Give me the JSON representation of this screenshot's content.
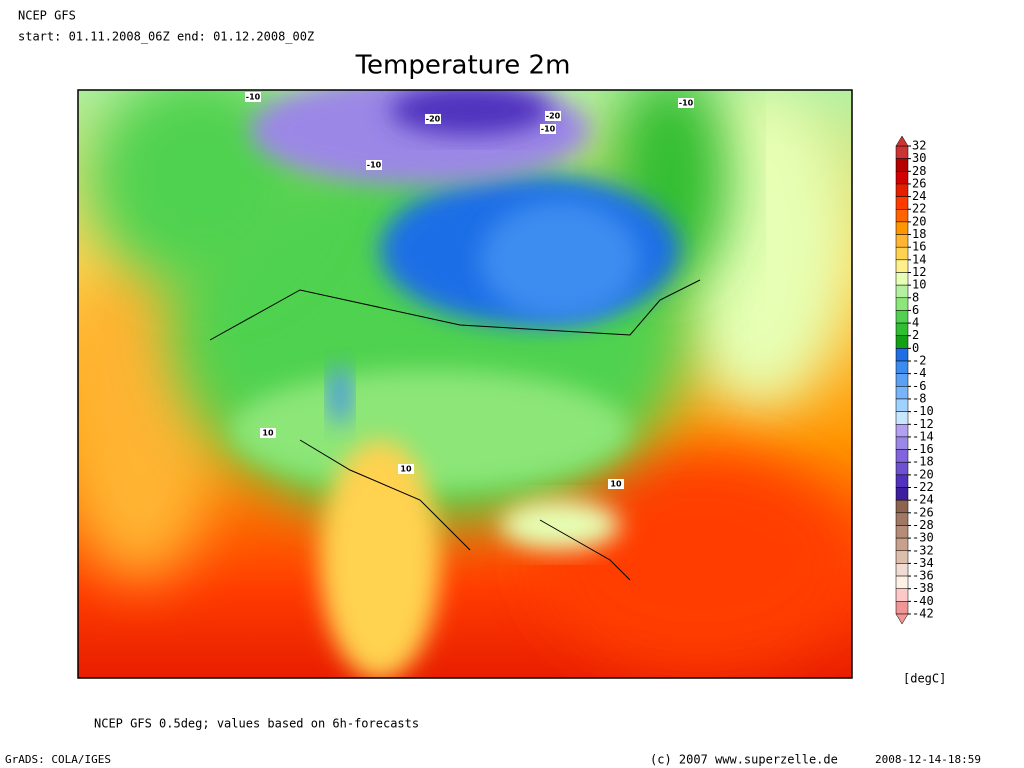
{
  "header": {
    "model": "NCEP GFS",
    "period": "start: 01.11.2008_06Z end: 01.12.2008_00Z"
  },
  "title": "Temperature 2m",
  "contour_labels": [
    "-10",
    "-20",
    "-20",
    "-10",
    "-10",
    "-10",
    "10",
    "10",
    "10"
  ],
  "colorbar": {
    "ticks": [
      32,
      30,
      28,
      26,
      24,
      22,
      20,
      18,
      16,
      14,
      12,
      10,
      8,
      6,
      4,
      2,
      0,
      -2,
      -4,
      -6,
      -8,
      -10,
      -12,
      -14,
      -16,
      -18,
      -20,
      -22,
      -24,
      -26,
      -28,
      -30,
      -32,
      -34,
      -36,
      -38,
      -40,
      -42
    ],
    "colors": [
      "#cc3333",
      "#b40000",
      "#d20000",
      "#e81e00",
      "#ff3c00",
      "#ff6400",
      "#ff9600",
      "#ffb432",
      "#ffd250",
      "#fff08c",
      "#e6ffb4",
      "#b4f0a0",
      "#8ce678",
      "#50d250",
      "#32be32",
      "#14a014",
      "#1e6ee6",
      "#3c8cf0",
      "#5aa0f5",
      "#78b4fa",
      "#a0d2ff",
      "#c8e6ff",
      "#b4a0f0",
      "#9b87e6",
      "#8264dc",
      "#6e50d2",
      "#5032be",
      "#3c1ea0",
      "#8c6450",
      "#a07864",
      "#b48c78",
      "#c8a08c",
      "#dcbeaa",
      "#f0dcd2",
      "#fff0e6",
      "#ffc8c8",
      "#f09696"
    ],
    "unit": "[degC]"
  },
  "footer": {
    "note": "NCEP GFS 0.5deg; values based on 6h-forecasts",
    "software": "GrADS: COLA/IGES",
    "copyright": "(c) 2007 www.superzelle.de",
    "timestamp": "2008-12-14-18:59"
  }
}
